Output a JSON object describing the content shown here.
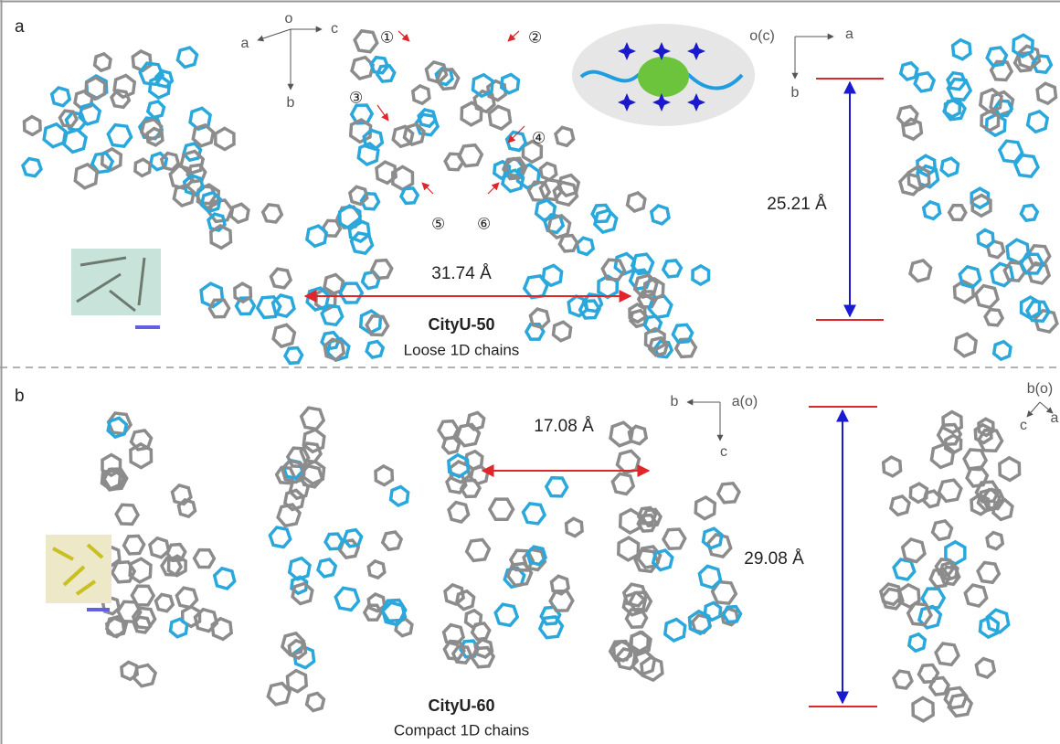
{
  "panels": [
    {
      "label": "a",
      "axes_left": {
        "origin": "o",
        "left": "a",
        "right": "c",
        "down": "b"
      },
      "positions": [
        "①",
        "②",
        "③",
        "④",
        "⑤",
        "⑥"
      ],
      "axes_right": {
        "origin": "o(c)",
        "right": "a",
        "down": "b"
      },
      "distance_horizontal": "31.74 Å",
      "distance_vertical": "25.21 Å",
      "name": "CityU-50",
      "description": "Loose 1D  chains"
    },
    {
      "label": "b",
      "axes_left": {
        "left": "b",
        "origin": "a(o)",
        "down": "c"
      },
      "axes_right": {
        "origin": "b(o)",
        "down_left": "c",
        "down_right": "a"
      },
      "distance_horizontal": "17.08 Å",
      "distance_vertical": "29.08 Å",
      "name": "CityU-60",
      "description": "Compact 1D  chains"
    }
  ]
}
